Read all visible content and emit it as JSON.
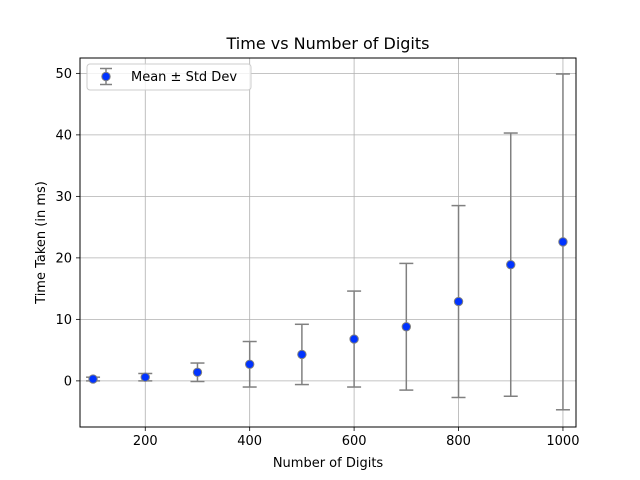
{
  "chart_data": {
    "type": "scatter",
    "title": "Time vs Number of Digits",
    "xlabel": "Number of Digits",
    "ylabel": "Time Taken (in ms)",
    "xlim": [
      75,
      1025
    ],
    "ylim": [
      -7.5,
      52.5
    ],
    "xticks": [
      200,
      400,
      600,
      800,
      1000
    ],
    "yticks": [
      0,
      10,
      20,
      30,
      40,
      50
    ],
    "grid": true,
    "legend": {
      "position": "top-left",
      "entries": [
        "Mean ± Std Dev"
      ]
    },
    "series": [
      {
        "name": "Mean ± Std Dev",
        "marker_color": "#0033ff",
        "errorbar_color": "#808080",
        "points": [
          {
            "x": 100,
            "y": 0.3,
            "yerr": 0.3
          },
          {
            "x": 200,
            "y": 0.6,
            "yerr": 0.6
          },
          {
            "x": 300,
            "y": 1.4,
            "yerr": 1.5
          },
          {
            "x": 400,
            "y": 2.7,
            "yerr": 3.7
          },
          {
            "x": 500,
            "y": 4.3,
            "yerr": 4.9
          },
          {
            "x": 600,
            "y": 6.8,
            "yerr": 7.8
          },
          {
            "x": 700,
            "y": 8.8,
            "yerr": 10.3
          },
          {
            "x": 800,
            "y": 12.9,
            "yerr": 15.6
          },
          {
            "x": 900,
            "y": 18.9,
            "yerr": 21.4
          },
          {
            "x": 1000,
            "y": 22.6,
            "yerr": 27.3
          }
        ]
      }
    ]
  }
}
